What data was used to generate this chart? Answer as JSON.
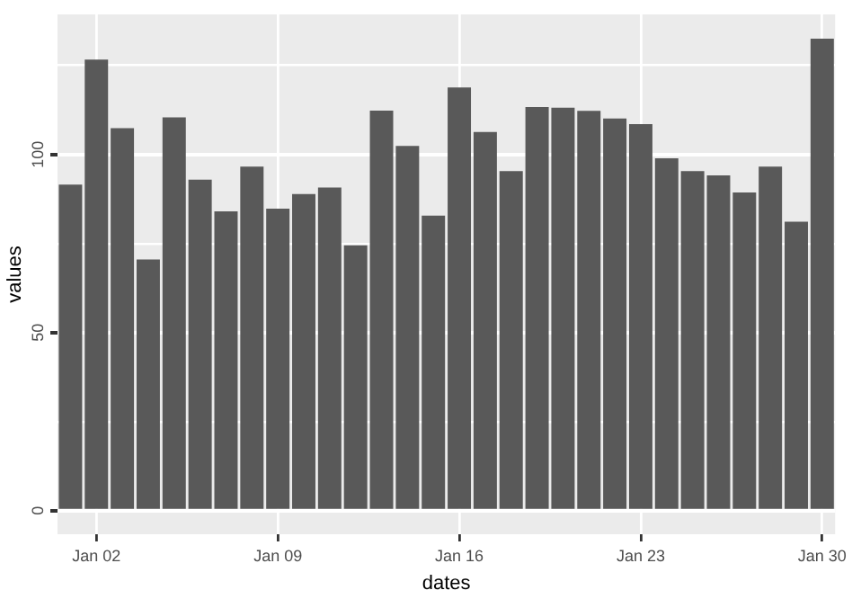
{
  "chart_data": {
    "type": "bar",
    "xlabel": "dates",
    "ylabel": "values",
    "color": "#595959",
    "categories": [
      null,
      "Jan 02",
      null,
      null,
      null,
      null,
      null,
      null,
      "Jan 09",
      null,
      null,
      null,
      null,
      null,
      null,
      "Jan 16",
      null,
      null,
      null,
      null,
      null,
      null,
      "Jan 23",
      null,
      null,
      null,
      null,
      null,
      null,
      "Jan 30"
    ],
    "values": [
      91.5,
      126.6,
      107.4,
      70.5,
      110.4,
      92.9,
      84,
      96.6,
      84.8,
      88.9,
      90.7,
      74.5,
      112.3,
      102.4,
      82.8,
      118.8,
      106.3,
      95.3,
      113.3,
      113.1,
      112.2,
      110.1,
      108.5,
      98.9,
      95.3,
      94.1,
      89.3,
      96.6,
      81.1,
      132.5
    ],
    "ylim": [
      -6.6,
      139.3
    ],
    "yticks": [
      0,
      {
        "value": 25,
        "label": null
      },
      50,
      {
        "value": 75,
        "label": null
      },
      100,
      {
        "value": 125,
        "label": null
      }
    ],
    "grid": true
  }
}
